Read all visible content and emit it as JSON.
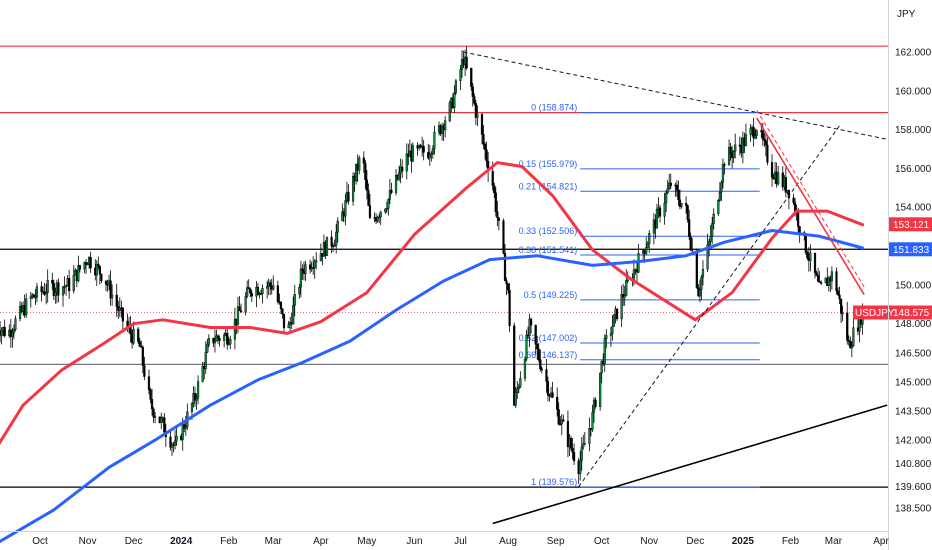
{
  "chart_data": {
    "type": "candlestick",
    "currency_label": "JPY",
    "symbol": "USDJPY",
    "last_price": 148.575,
    "y_range": [
      137.6,
      163.6
    ],
    "y_ticks": [
      {
        "label": "162.000",
        "value": 162.0
      },
      {
        "label": "160.000",
        "value": 160.0
      },
      {
        "label": "158.000",
        "value": 158.0
      },
      {
        "label": "156.000",
        "value": 156.0
      },
      {
        "label": "154.000",
        "value": 154.0
      },
      {
        "label": "152.000",
        "value": 152.0
      },
      {
        "label": "150.000",
        "value": 150.0
      },
      {
        "label": "148.000",
        "value": 148.0
      },
      {
        "label": "146.500",
        "value": 146.5
      },
      {
        "label": "145.000",
        "value": 145.0
      },
      {
        "label": "143.500",
        "value": 143.5
      },
      {
        "label": "142.000",
        "value": 142.0
      },
      {
        "label": "140.800",
        "value": 140.8
      },
      {
        "label": "139.600",
        "value": 139.6
      },
      {
        "label": "138.500",
        "value": 138.5
      }
    ],
    "x_ticks": [
      {
        "label": "Oct",
        "date": "2023-10-01"
      },
      {
        "label": "Nov",
        "date": "2023-11-01"
      },
      {
        "label": "Dec",
        "date": "2023-12-01"
      },
      {
        "label": "2024",
        "date": "2024-01-01"
      },
      {
        "label": "Feb",
        "date": "2024-02-01"
      },
      {
        "label": "Mar",
        "date": "2024-03-01"
      },
      {
        "label": "Apr",
        "date": "2024-04-01"
      },
      {
        "label": "May",
        "date": "2024-05-01"
      },
      {
        "label": "Jun",
        "date": "2024-06-01"
      },
      {
        "label": "Jul",
        "date": "2024-07-01"
      },
      {
        "label": "Aug",
        "date": "2024-08-01"
      },
      {
        "label": "Sep",
        "date": "2024-09-01"
      },
      {
        "label": "Oct",
        "date": "2024-10-01"
      },
      {
        "label": "Nov",
        "date": "2024-11-01"
      },
      {
        "label": "Dec",
        "date": "2024-12-01"
      },
      {
        "label": "2025",
        "date": "2025-01-01"
      },
      {
        "label": "Feb",
        "date": "2025-02-01"
      },
      {
        "label": "Mar",
        "date": "2025-03-01"
      },
      {
        "label": "Apr",
        "date": "2025-04-01"
      }
    ],
    "price_tags": [
      {
        "label": "153.121",
        "value": 153.121,
        "color": "#f23645"
      },
      {
        "label": "151.833",
        "value": 151.833,
        "color": "#2962ff"
      },
      {
        "label": "148.575",
        "value": 148.575,
        "color": "#f23645"
      }
    ],
    "fib_levels": [
      {
        "label": "0 (158.874)",
        "value": 158.874
      },
      {
        "label": "0.15 (155.979)",
        "value": 155.979
      },
      {
        "label": "0.21 (154.821)",
        "value": 154.821
      },
      {
        "label": "0.33 (152.506)",
        "value": 152.506
      },
      {
        "label": "0.38 (151.541)",
        "value": 151.541
      },
      {
        "label": "0.5 (149.225)",
        "value": 149.225
      },
      {
        "label": "0.62 (147.002)",
        "value": 147.002
      },
      {
        "label": "0.66 (146.137)",
        "value": 146.137
      },
      {
        "label": "1 (139.576)",
        "value": 139.576
      }
    ],
    "horizontal_lines": [
      {
        "value": 162.3,
        "color": "#f23645"
      },
      {
        "value": 158.874,
        "color": "#f23645"
      },
      {
        "value": 151.833,
        "color": "#000000"
      },
      {
        "value": 145.9,
        "color": "#787b86"
      },
      {
        "value": 139.576,
        "color": "#000000"
      }
    ],
    "trendlines": [
      {
        "start": [
          "2024-07-03",
          162.0
        ],
        "end": [
          "2025-04-05",
          157.5
        ],
        "style": "dashed",
        "color": "#131722"
      },
      {
        "start": [
          "2024-09-16",
          139.6
        ],
        "end": [
          "2025-03-05",
          158.2
        ],
        "style": "dashed",
        "color": "#131722"
      },
      {
        "start": [
          "2024-07-22",
          137.7
        ],
        "end": [
          "2025-04-05",
          143.8
        ],
        "style": "solid",
        "color": "#000000"
      },
      {
        "start": [
          "2025-01-10",
          159.0
        ],
        "end": [
          "2025-03-21",
          149.9
        ],
        "style": "dashed",
        "color": "#f23645"
      },
      {
        "start": [
          "2025-01-10",
          158.6
        ],
        "end": [
          "2025-03-21",
          149.5
        ],
        "style": "solid",
        "color": "#f23645"
      }
    ],
    "moving_averages": [
      {
        "color": "#f23645",
        "points": [
          [
            "2023-09-01",
            141.4
          ],
          [
            "2023-09-20",
            143.8
          ],
          [
            "2023-10-15",
            145.6
          ],
          [
            "2023-11-10",
            146.9
          ],
          [
            "2023-12-01",
            148.0
          ],
          [
            "2023-12-20",
            148.2
          ],
          [
            "2024-01-20",
            147.8
          ],
          [
            "2024-02-15",
            147.8
          ],
          [
            "2024-03-10",
            147.5
          ],
          [
            "2024-04-01",
            148.1
          ],
          [
            "2024-05-01",
            149.6
          ],
          [
            "2024-06-01",
            152.6
          ],
          [
            "2024-07-05",
            155.0
          ],
          [
            "2024-07-25",
            156.3
          ],
          [
            "2024-08-10",
            156.1
          ],
          [
            "2024-08-30",
            154.6
          ],
          [
            "2024-09-25",
            151.8
          ],
          [
            "2024-10-20",
            150.3
          ],
          [
            "2024-11-15",
            149.0
          ],
          [
            "2024-12-01",
            148.2
          ],
          [
            "2024-12-25",
            149.6
          ],
          [
            "2025-01-20",
            152.4
          ],
          [
            "2025-02-05",
            153.8
          ],
          [
            "2025-02-25",
            153.8
          ],
          [
            "2025-03-20",
            153.1
          ]
        ]
      },
      {
        "color": "#2962ff",
        "points": [
          [
            "2023-09-01",
            136.6
          ],
          [
            "2023-10-10",
            138.4
          ],
          [
            "2023-11-15",
            140.6
          ],
          [
            "2023-12-15",
            142.0
          ],
          [
            "2024-01-20",
            143.8
          ],
          [
            "2024-02-20",
            145.1
          ],
          [
            "2024-03-20",
            146.0
          ],
          [
            "2024-04-20",
            147.1
          ],
          [
            "2024-05-20",
            148.7
          ],
          [
            "2024-06-20",
            150.2
          ],
          [
            "2024-07-20",
            151.3
          ],
          [
            "2024-08-20",
            151.5
          ],
          [
            "2024-09-25",
            151.0
          ],
          [
            "2024-10-25",
            151.2
          ],
          [
            "2024-11-25",
            151.5
          ],
          [
            "2024-12-20",
            152.2
          ],
          [
            "2025-01-20",
            152.8
          ],
          [
            "2025-02-20",
            152.5
          ],
          [
            "2025-03-20",
            151.9
          ]
        ]
      }
    ],
    "price_path": [
      [
        "2023-09-01",
        148.0
      ],
      [
        "2023-09-10",
        147.5
      ],
      [
        "2023-09-25",
        149.3
      ],
      [
        "2023-10-05",
        149.8
      ],
      [
        "2023-10-20",
        150.0
      ],
      [
        "2023-11-01",
        151.4
      ],
      [
        "2023-11-12",
        150.4
      ],
      [
        "2023-11-25",
        148.0
      ],
      [
        "2023-12-05",
        146.8
      ],
      [
        "2023-12-12",
        143.8
      ],
      [
        "2023-12-20",
        142.8
      ],
      [
        "2023-12-28",
        141.6
      ],
      [
        "2024-01-10",
        144.2
      ],
      [
        "2024-01-20",
        147.2
      ],
      [
        "2024-02-01",
        147.4
      ],
      [
        "2024-02-15",
        149.8
      ],
      [
        "2024-03-01",
        150.0
      ],
      [
        "2024-03-10",
        147.4
      ],
      [
        "2024-03-20",
        150.8
      ],
      [
        "2024-04-10",
        152.4
      ],
      [
        "2024-04-28",
        156.8
      ],
      [
        "2024-05-03",
        153.2
      ],
      [
        "2024-05-15",
        154.4
      ],
      [
        "2024-05-28",
        156.7
      ],
      [
        "2024-06-10",
        156.9
      ],
      [
        "2024-06-25",
        159.2
      ],
      [
        "2024-07-03",
        161.7
      ],
      [
        "2024-07-12",
        158.6
      ],
      [
        "2024-07-22",
        155.2
      ],
      [
        "2024-08-01",
        149.5
      ],
      [
        "2024-08-05",
        143.8
      ],
      [
        "2024-08-15",
        147.8
      ],
      [
        "2024-08-28",
        144.5
      ],
      [
        "2024-09-10",
        141.8
      ],
      [
        "2024-09-16",
        140.7
      ],
      [
        "2024-09-25",
        143.2
      ],
      [
        "2024-10-03",
        146.8
      ],
      [
        "2024-10-15",
        149.5
      ],
      [
        "2024-11-01",
        152.5
      ],
      [
        "2024-11-15",
        155.2
      ],
      [
        "2024-11-25",
        153.8
      ],
      [
        "2024-12-03",
        149.7
      ],
      [
        "2024-12-10",
        152.1
      ],
      [
        "2024-12-20",
        156.5
      ],
      [
        "2025-01-01",
        157.3
      ],
      [
        "2025-01-10",
        158.2
      ],
      [
        "2025-01-20",
        155.9
      ],
      [
        "2025-02-01",
        154.8
      ],
      [
        "2025-02-10",
        152.2
      ],
      [
        "2025-02-20",
        149.7
      ],
      [
        "2025-03-01",
        150.6
      ],
      [
        "2025-03-11",
        146.9
      ],
      [
        "2025-03-20",
        148.6
      ]
    ]
  }
}
